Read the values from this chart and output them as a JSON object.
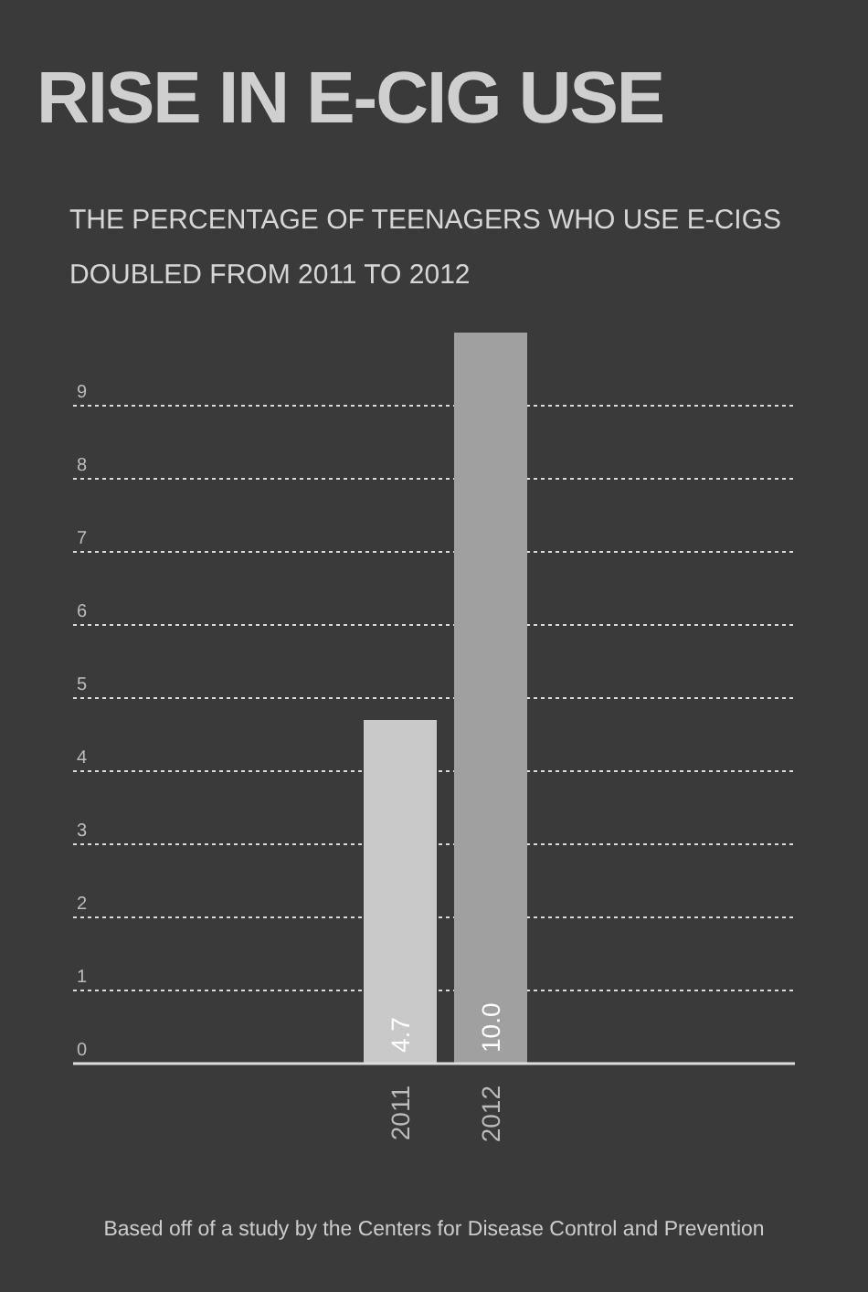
{
  "chart_data": {
    "type": "bar",
    "title": "RISE IN E-CIG USE",
    "subtitle": "THE PERCENTAGE OF TEENAGERS WHO USE E-CIGS\nDOUBLED FROM 2011 TO 2012",
    "categories": [
      "2011",
      "2012"
    ],
    "values": [
      4.7,
      10.0
    ],
    "colors": [
      "#c9c9c9",
      "#a0a0a0"
    ],
    "value_labels": [
      "4.7",
      "10.0"
    ],
    "ylim": [
      0,
      10
    ],
    "yticks": [
      0,
      1,
      2,
      3,
      4,
      5,
      6,
      7,
      8,
      9
    ],
    "grid": "y",
    "annotations": [
      "Based off of a study by the Centers for Disease Control and Prevention"
    ]
  }
}
